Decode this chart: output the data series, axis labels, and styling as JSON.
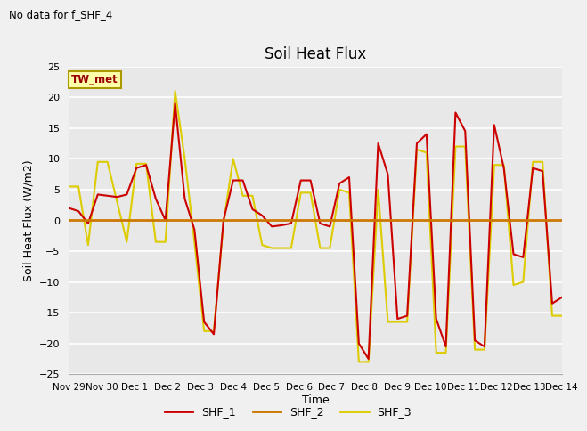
{
  "title": "Soil Heat Flux",
  "ylabel": "Soil Heat Flux (W/m2)",
  "xlabel": "Time",
  "note": "No data for f_SHF_4",
  "legend_label": "TW_met",
  "ylim": [
    -25,
    25
  ],
  "yticks": [
    -25,
    -20,
    -15,
    -10,
    -5,
    0,
    5,
    10,
    15,
    20,
    25
  ],
  "fig_bg": "#f0f0f0",
  "plot_bg": "#e8e8e8",
  "series_colors": {
    "SHF_1": "#cc0000",
    "SHF_2": "#cc7700",
    "SHF_3": "#ddcc00"
  },
  "x_tick_labels": [
    "Nov 29",
    "Nov 30",
    "Dec 1",
    "Dec 2",
    "Dec 3",
    "Dec 4",
    "Dec 5",
    "Dec 6",
    "Dec 7",
    "Dec 8",
    "Dec 9",
    "Dec 10",
    "Dec 11",
    "Dec 12",
    "Dec 13",
    "Dec 14"
  ],
  "shf1": [
    2.0,
    1.5,
    -0.5,
    4.2,
    4.0,
    3.8,
    4.2,
    8.5,
    9.0,
    3.5,
    0.0,
    19.0,
    3.5,
    -1.5,
    -16.5,
    -18.5,
    0.0,
    6.5,
    6.5,
    1.8,
    0.8,
    -1.0,
    -0.8,
    -0.5,
    6.5,
    6.5,
    -0.5,
    -1.0,
    6.0,
    7.0,
    -20.0,
    -22.5,
    12.5,
    7.5,
    -16.0,
    -15.5,
    12.5,
    14.0,
    -16.0,
    -20.5,
    17.5,
    14.5,
    -19.5,
    -20.5,
    15.5,
    8.5,
    -5.5,
    -6.0,
    8.5,
    8.0,
    -13.5,
    -12.5
  ],
  "shf2": [
    0.0,
    0.0,
    0.0,
    0.0,
    0.0,
    0.0,
    0.0,
    0.0,
    0.0,
    0.0,
    0.0,
    0.0,
    0.0,
    0.0,
    0.0,
    0.0,
    0.0,
    0.0,
    0.0,
    0.0,
    0.0,
    0.0,
    0.0,
    0.0,
    0.0,
    0.0,
    0.0,
    0.0,
    0.0,
    0.0,
    0.0,
    0.0,
    0.0,
    0.0,
    0.0,
    0.0,
    0.0,
    0.0,
    0.0,
    0.0,
    0.0,
    0.0,
    0.0,
    0.0,
    0.0,
    0.0,
    0.0,
    0.0,
    0.0,
    0.0,
    0.0,
    0.0
  ],
  "shf3": [
    5.5,
    5.5,
    -4.0,
    9.5,
    9.5,
    3.0,
    -3.5,
    9.2,
    9.2,
    -3.5,
    -3.5,
    21.0,
    10.0,
    -3.5,
    -18.0,
    -18.0,
    -0.5,
    10.0,
    4.0,
    4.0,
    -4.0,
    -4.5,
    -4.5,
    -4.5,
    4.5,
    4.5,
    -4.5,
    -4.5,
    5.0,
    4.5,
    -23.0,
    -23.0,
    5.0,
    -16.5,
    -16.5,
    -16.5,
    11.5,
    11.0,
    -21.5,
    -21.5,
    12.0,
    12.0,
    -21.0,
    -21.0,
    9.0,
    9.0,
    -10.5,
    -10.0,
    9.5,
    9.5,
    -15.5,
    -15.5
  ]
}
